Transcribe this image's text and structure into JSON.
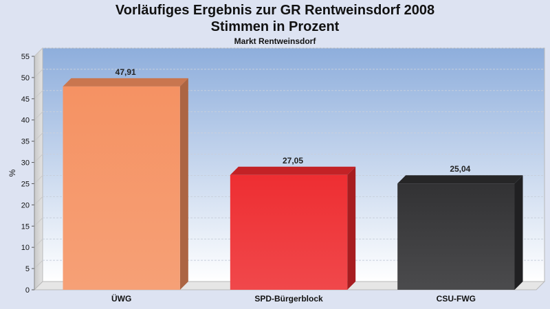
{
  "chart_data": {
    "type": "bar",
    "title": "Vorläufiges Ergebnis zur GR Rentweinsdorf 2008",
    "title_line2": "Stimmen in Prozent",
    "subtitle": "Markt Rentweinsdorf",
    "ylabel": "%",
    "ylim": [
      0,
      55
    ],
    "yticks": [
      "0",
      "5",
      "10",
      "15",
      "20",
      "25",
      "30",
      "35",
      "40",
      "45",
      "50",
      "55"
    ],
    "categories": [
      "ÜWG",
      "SPD-Bürgerblock",
      "CSU-FWG"
    ],
    "values": [
      47.91,
      27.05,
      25.04
    ],
    "value_labels": [
      "47,91",
      "27,05",
      "25,04"
    ],
    "colors": [
      "#f59060",
      "#ee2a2e",
      "#2e2e30"
    ],
    "grid": true,
    "legend": "none"
  }
}
